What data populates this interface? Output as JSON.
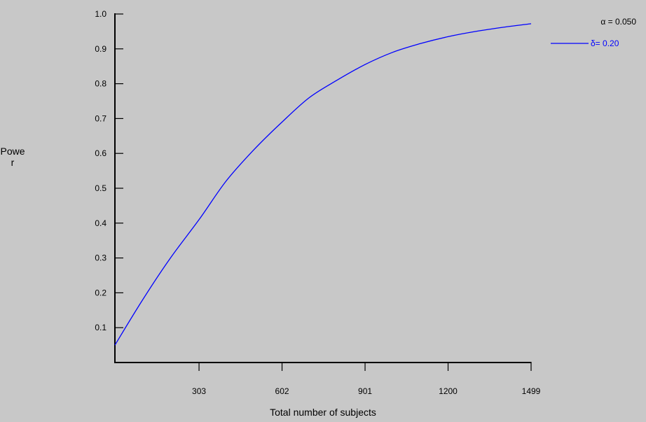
{
  "chart_data": {
    "type": "line",
    "xlabel": "Total number of subjects",
    "ylabel": "Power",
    "xlim": [
      0,
      1499
    ],
    "ylim": [
      0,
      1.0
    ],
    "x_ticks": [
      303,
      602,
      901,
      1200,
      1499
    ],
    "y_ticks": [
      0.1,
      0.2,
      0.3,
      0.4,
      0.5,
      0.6,
      0.7,
      0.8,
      0.9,
      1.0
    ],
    "y_tick_labels": [
      "0.1",
      "0.2",
      "0.3",
      "0.4",
      "0.5",
      "0.6",
      "0.7",
      "0.8",
      "0.9",
      "1.0"
    ],
    "legend": {
      "header": "α = 0.050",
      "placement": "top-right"
    },
    "series": [
      {
        "name": "δ= 0.20",
        "color": "#0000ff",
        "x": [
          0,
          100,
          200,
          303,
          400,
          500,
          602,
          700,
          800,
          901,
          1000,
          1100,
          1200,
          1300,
          1400,
          1499
        ],
        "y": [
          0.05,
          0.18,
          0.3,
          0.41,
          0.52,
          0.61,
          0.69,
          0.76,
          0.81,
          0.855,
          0.89,
          0.915,
          0.935,
          0.95,
          0.962,
          0.972
        ]
      }
    ]
  }
}
